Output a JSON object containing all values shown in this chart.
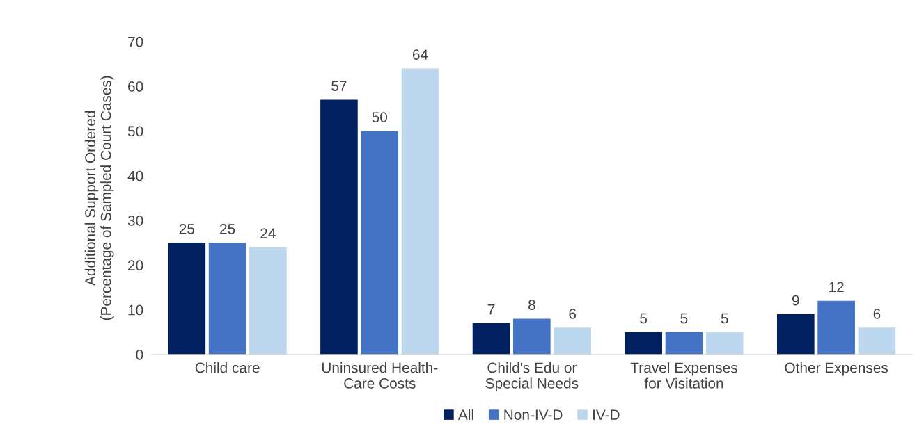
{
  "chart_data": {
    "type": "bar",
    "ylabel": "Additional Support Ordered\n(Percentage of Sampled Court Cases)",
    "categories": [
      "Child care",
      "Uninsured Health-\nCare Costs",
      "Child's Edu or\nSpecial Needs",
      "Travel Expenses\nfor Visitation",
      "Other Expenses"
    ],
    "series": [
      {
        "name": "All",
        "color": "#002060",
        "values": [
          25,
          57,
          7,
          5,
          9
        ]
      },
      {
        "name": "Non-IV-D",
        "color": "#4472c4",
        "values": [
          25,
          50,
          8,
          5,
          12
        ]
      },
      {
        "name": "IV-D",
        "color": "#bdd7ee",
        "values": [
          24,
          64,
          6,
          5,
          6
        ]
      }
    ],
    "ylim": [
      0,
      70
    ],
    "yticks": [
      0,
      10,
      20,
      30,
      40,
      50,
      60,
      70
    ],
    "data_labels": true,
    "legend": "bottom",
    "grid": false
  }
}
